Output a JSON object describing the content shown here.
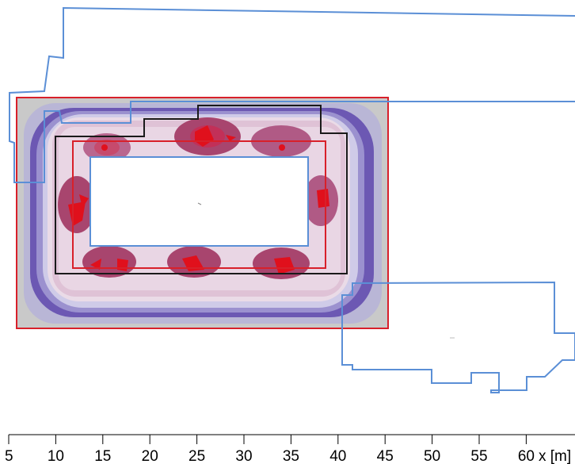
{
  "scale_axis": {
    "ticks": [
      "5",
      "10",
      "15",
      "20",
      "25",
      "30",
      "35",
      "40",
      "45",
      "50",
      "55",
      "60"
    ],
    "unit_label": "x [m]"
  },
  "colors": {
    "building_outline": "#5b8fd6",
    "calc_area_outline": "#d8202a",
    "field_outline": "#1a1a1a",
    "contour_low": "#c8c8c8",
    "contour_mid": "#6a55b0",
    "contour_high": "#a8456e",
    "contour_peak": "#e0101c"
  }
}
